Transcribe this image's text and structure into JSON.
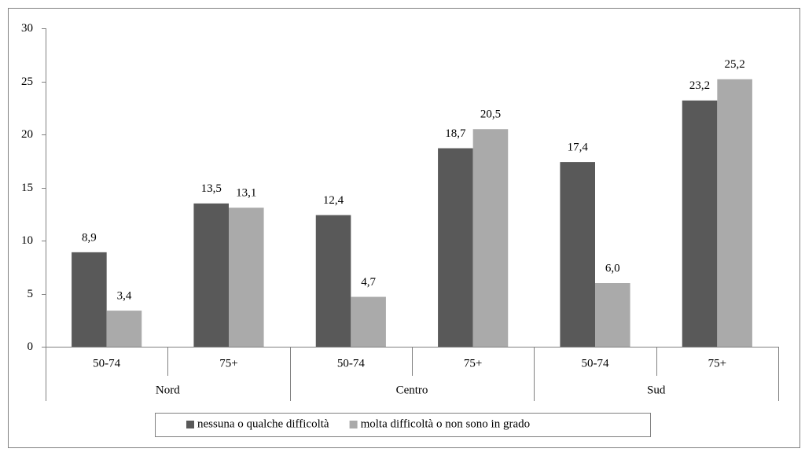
{
  "chart_data": {
    "type": "bar",
    "categories": [
      "50-74",
      "75+",
      "50-74",
      "75+",
      "50-74",
      "75+"
    ],
    "groups": [
      "Nord",
      "Centro",
      "Sud"
    ],
    "series": [
      {
        "name": "nessuna o qualche difficoltà",
        "color": "#595959",
        "values": [
          8.9,
          13.5,
          12.4,
          18.7,
          17.4,
          23.2
        ],
        "value_labels": [
          "8,9",
          "13,5",
          "12,4",
          "18,7",
          "17,4",
          "23,2"
        ]
      },
      {
        "name": "molta difficoltà o non sono in grado",
        "color": "#aaaaaa",
        "values": [
          3.4,
          13.1,
          4.7,
          20.5,
          6.0,
          25.2
        ],
        "value_labels": [
          "3,4",
          "13,1",
          "4,7",
          "20,5",
          "6,0",
          "25,2"
        ]
      }
    ],
    "ylim": [
      0,
      30
    ],
    "yticks": [
      0,
      5,
      10,
      15,
      20,
      25,
      30
    ],
    "grid": false,
    "legend": "bottom"
  }
}
